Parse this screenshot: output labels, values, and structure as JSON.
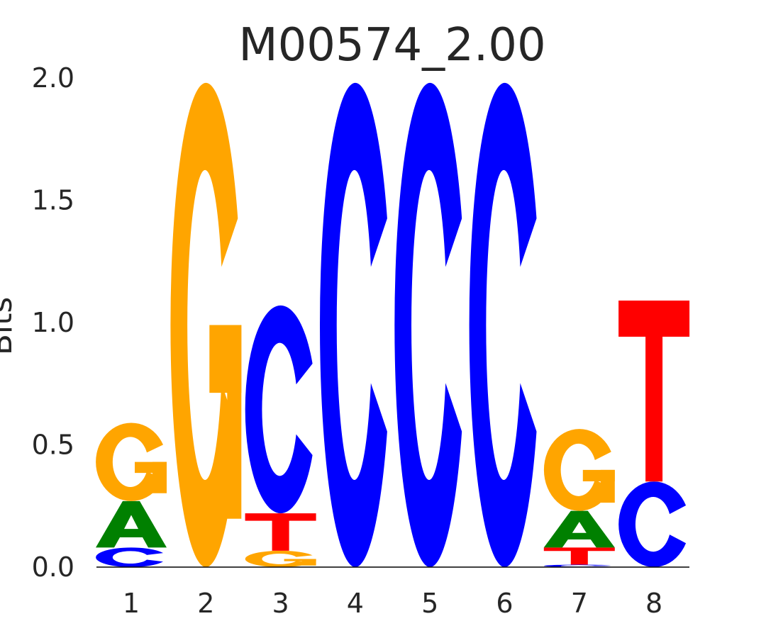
{
  "chart_data": {
    "type": "sequence-logo",
    "title": "M00574_2.00",
    "ylabel": "Bits",
    "xlabel": "",
    "ylim": [
      0,
      2.0
    ],
    "yticks": [
      "0.0",
      "0.5",
      "1.0",
      "1.5",
      "2.0"
    ],
    "categories": [
      "1",
      "2",
      "3",
      "4",
      "5",
      "6",
      "7",
      "8"
    ],
    "colors": {
      "A": "#008000",
      "C": "#0000ff",
      "G": "#ffa500",
      "T": "#ff0000"
    },
    "positions": [
      {
        "stack": [
          {
            "letter": "C",
            "bits": 0.08
          },
          {
            "letter": "A",
            "bits": 0.19
          },
          {
            "letter": "G",
            "bits": 0.32
          }
        ]
      },
      {
        "stack": [
          {
            "letter": "G",
            "bits": 1.98
          }
        ]
      },
      {
        "stack": [
          {
            "letter": "G",
            "bits": 0.067
          },
          {
            "letter": "T",
            "bits": 0.153
          },
          {
            "letter": "C",
            "bits": 0.85
          }
        ]
      },
      {
        "stack": [
          {
            "letter": "C",
            "bits": 1.98
          }
        ]
      },
      {
        "stack": [
          {
            "letter": "C",
            "bits": 1.98
          }
        ]
      },
      {
        "stack": [
          {
            "letter": "C",
            "bits": 1.98
          }
        ]
      },
      {
        "stack": [
          {
            "letter": "C",
            "bits": 0.01
          },
          {
            "letter": "T",
            "bits": 0.07
          },
          {
            "letter": "A",
            "bits": 0.15
          },
          {
            "letter": "G",
            "bits": 0.335
          }
        ]
      },
      {
        "stack": [
          {
            "letter": "C",
            "bits": 0.35
          },
          {
            "letter": "T",
            "bits": 0.74
          }
        ]
      }
    ]
  }
}
